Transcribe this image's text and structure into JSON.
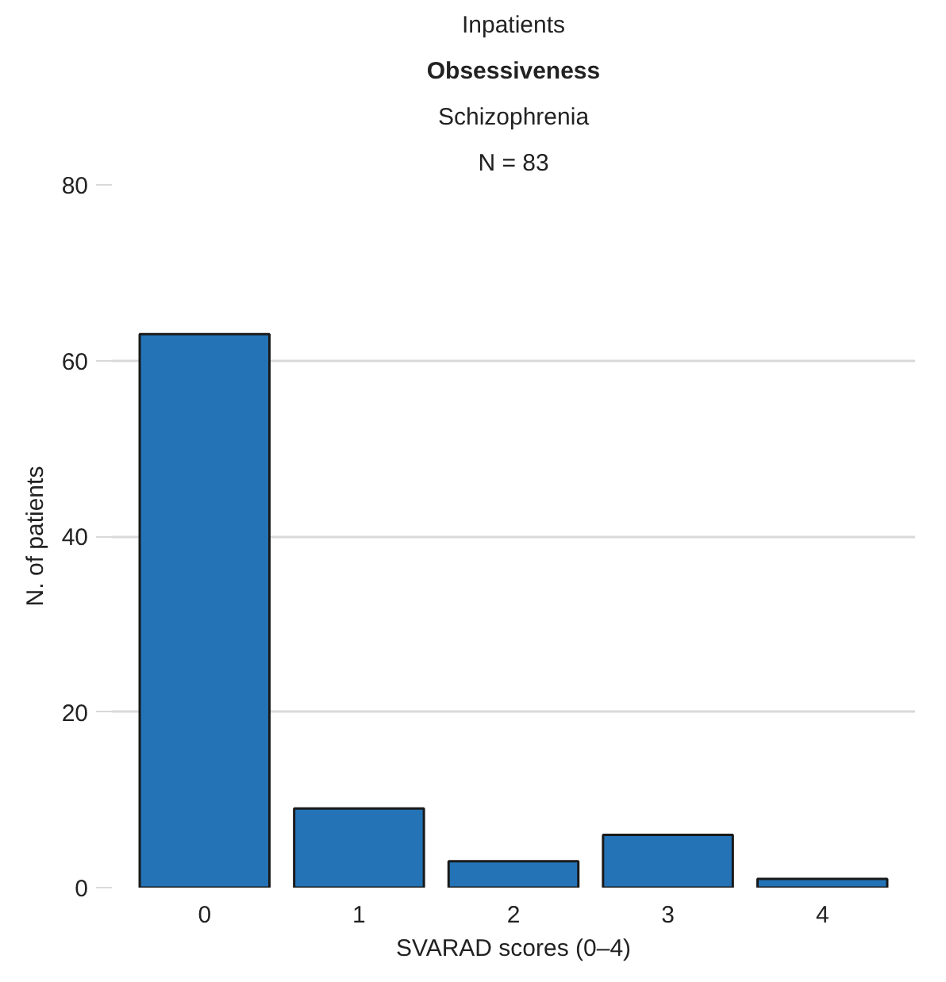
{
  "chart_data": {
    "type": "bar",
    "title": "Inpatients",
    "subtitle": "Obsessiveness",
    "annotations": [
      "Schizophrenia",
      "N = 83"
    ],
    "xlabel": "SVARAD scores (0–4)",
    "ylabel": "N. of patients",
    "categories": [
      "0",
      "1",
      "2",
      "3",
      "4"
    ],
    "values": [
      63,
      9,
      3,
      6,
      1
    ],
    "color": "#2473b7",
    "ylim": [
      0,
      80
    ],
    "yticks": [
      0,
      20,
      40,
      60,
      80
    ],
    "grid": "y"
  }
}
